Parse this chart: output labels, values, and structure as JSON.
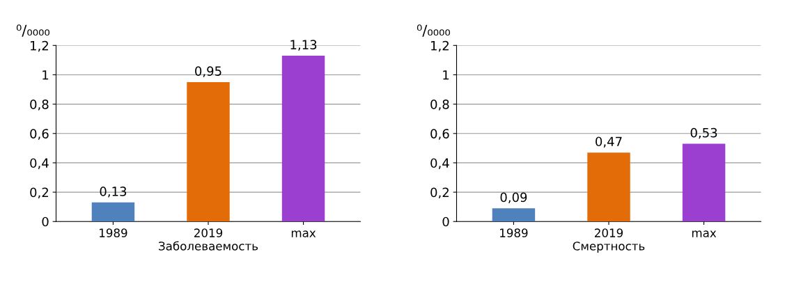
{
  "chart_data": [
    {
      "type": "bar",
      "ylabel": "⁰/₀₀₀₀",
      "xlabel": "Заболеваемость",
      "categories": [
        "1989",
        "2019",
        "max"
      ],
      "values": [
        0.13,
        0.95,
        1.13
      ],
      "colors": [
        "#4f81bd",
        "#e36c09",
        "#9b3fd0"
      ],
      "value_labels": [
        "0,13",
        "0,95",
        "1,13"
      ],
      "ylim": [
        0,
        1.2
      ],
      "yticks": [
        0,
        {
          "value": 0.2,
          "label": "0,2"
        },
        {
          "value": 0.4,
          "label": "0,4"
        },
        {
          "value": 0.6,
          "label": "0,6"
        },
        {
          "value": 0.8,
          "label": "0,8"
        },
        1,
        {
          "value": 1.2,
          "label": "1,2"
        }
      ],
      "grid": "y"
    },
    {
      "type": "bar",
      "ylabel": "⁰/₀₀₀₀",
      "xlabel": "Смертность",
      "categories": [
        "1989",
        "2019",
        "max"
      ],
      "values": [
        0.09,
        0.47,
        0.53
      ],
      "colors": [
        "#4f81bd",
        "#e36c09",
        "#9b3fd0"
      ],
      "value_labels": [
        "0,09",
        "0,47",
        "0,53"
      ],
      "ylim": [
        0,
        1.2
      ],
      "yticks": [
        0,
        {
          "value": 0.2,
          "label": "0,2"
        },
        {
          "value": 0.4,
          "label": "0,4"
        },
        {
          "value": 0.6,
          "label": "0,6"
        },
        {
          "value": 0.8,
          "label": "0,8"
        },
        1,
        {
          "value": 1.2,
          "label": "1,2"
        }
      ],
      "grid": "y"
    }
  ]
}
